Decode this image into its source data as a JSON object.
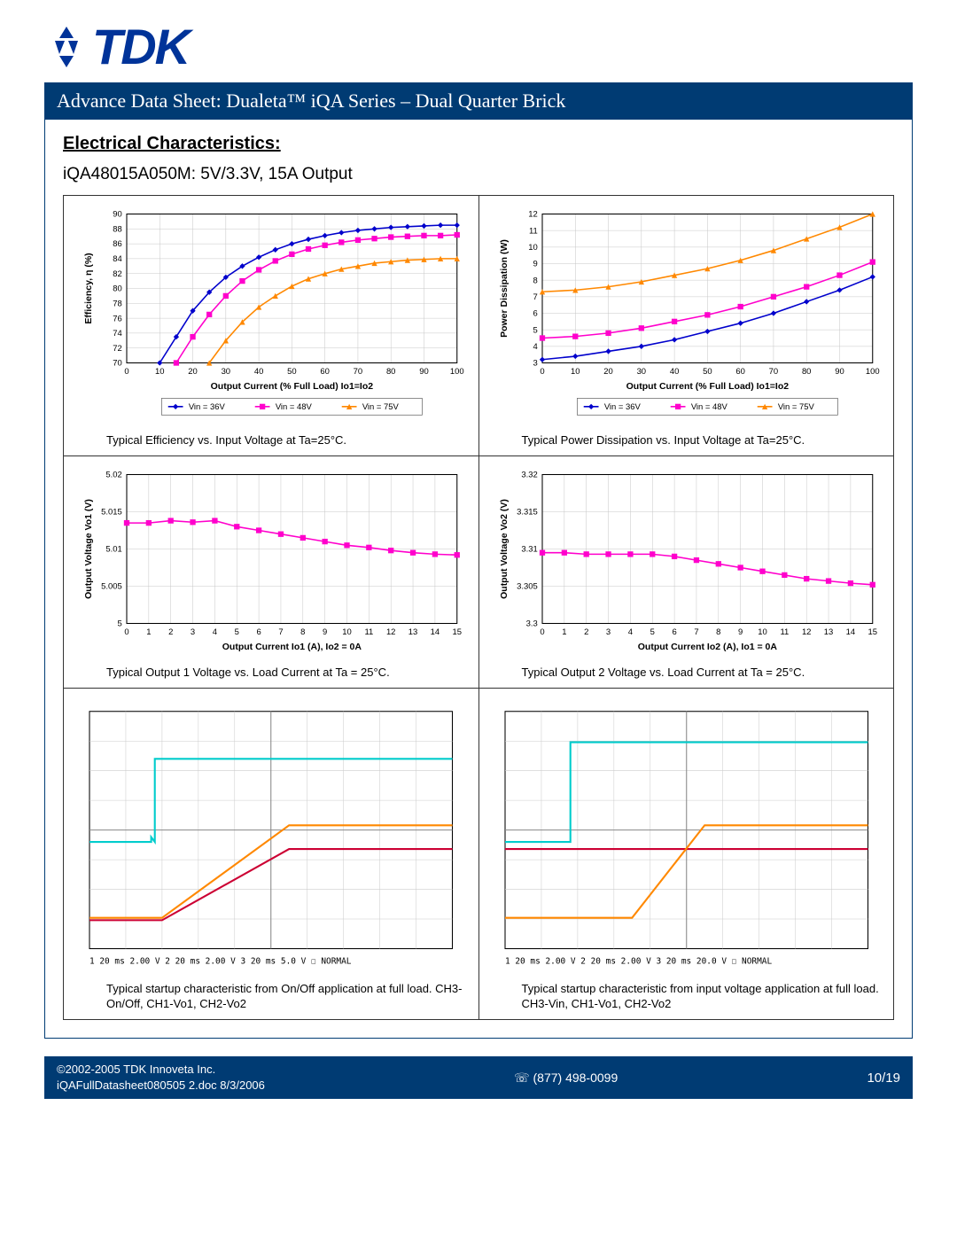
{
  "logo_text": "TDK",
  "header_bar": "Advance Data Sheet: Dualeta™ iQA Series – Dual Quarter Brick",
  "section_title": "Electrical Characteristics:",
  "subtitle": "iQA48015A050M: 5V/3.3V, 15A Output",
  "colors": {
    "brand_blue": "#003399",
    "header_bg": "#003b73",
    "series_blue": "#0000cc",
    "series_magenta": "#ff00cc",
    "series_orange": "#ff8800",
    "series_teal": "#00cccc",
    "series_red": "#cc0033",
    "grid": "#c8c8c8",
    "axis": "#000000"
  },
  "charts": {
    "efficiency": {
      "type": "line",
      "ylabel": "Efficiency, η (%)",
      "xlabel": "Output Current (% Full Load)  Io1=Io2",
      "xlim": [
        0,
        100
      ],
      "xtick_step": 10,
      "ylim": [
        70,
        90
      ],
      "ytick_step": 2,
      "legend": [
        "Vin = 36V",
        "Vin = 48V",
        "Vin = 75V"
      ],
      "legend_colors": [
        "#0000cc",
        "#ff00cc",
        "#ff8800"
      ],
      "legend_markers": [
        "diamond",
        "square",
        "triangle"
      ],
      "series": [
        {
          "color": "#0000cc",
          "marker": "diamond",
          "x": [
            10,
            15,
            20,
            25,
            30,
            35,
            40,
            45,
            50,
            55,
            60,
            65,
            70,
            75,
            80,
            85,
            90,
            95,
            100
          ],
          "y": [
            70,
            73.5,
            77,
            79.5,
            81.5,
            83,
            84.2,
            85.2,
            86,
            86.6,
            87.1,
            87.5,
            87.8,
            88,
            88.2,
            88.3,
            88.4,
            88.5,
            88.5
          ]
        },
        {
          "color": "#ff00cc",
          "marker": "square",
          "x": [
            15,
            20,
            25,
            30,
            35,
            40,
            45,
            50,
            55,
            60,
            65,
            70,
            75,
            80,
            85,
            90,
            95,
            100
          ],
          "y": [
            70,
            73.5,
            76.5,
            79,
            81,
            82.5,
            83.7,
            84.6,
            85.3,
            85.8,
            86.2,
            86.5,
            86.7,
            86.9,
            87,
            87.1,
            87.1,
            87.2
          ]
        },
        {
          "color": "#ff8800",
          "marker": "triangle",
          "x": [
            25,
            30,
            35,
            40,
            45,
            50,
            55,
            60,
            65,
            70,
            75,
            80,
            85,
            90,
            95,
            100
          ],
          "y": [
            70,
            73,
            75.5,
            77.5,
            79,
            80.3,
            81.3,
            82,
            82.6,
            83,
            83.4,
            83.6,
            83.8,
            83.9,
            84,
            84
          ]
        }
      ],
      "caption": "Typical Efficiency vs. Input Voltage at Ta=25°C."
    },
    "powerdiss": {
      "type": "line",
      "ylabel": "Power Dissipation (W)",
      "xlabel": "Output Current (% Full Load)  Io1=Io2",
      "xlim": [
        0,
        100
      ],
      "xtick_step": 10,
      "ylim": [
        3,
        12
      ],
      "ytick_step": 1,
      "legend": [
        "Vin = 36V",
        "Vin = 48V",
        "Vin = 75V"
      ],
      "legend_colors": [
        "#0000cc",
        "#ff00cc",
        "#ff8800"
      ],
      "legend_markers": [
        "diamond",
        "square",
        "triangle"
      ],
      "series": [
        {
          "color": "#0000cc",
          "marker": "diamond",
          "x": [
            0,
            10,
            20,
            30,
            40,
            50,
            60,
            70,
            80,
            90,
            100
          ],
          "y": [
            3.2,
            3.4,
            3.7,
            4.0,
            4.4,
            4.9,
            5.4,
            6.0,
            6.7,
            7.4,
            8.2
          ]
        },
        {
          "color": "#ff00cc",
          "marker": "square",
          "x": [
            0,
            10,
            20,
            30,
            40,
            50,
            60,
            70,
            80,
            90,
            100
          ],
          "y": [
            4.5,
            4.6,
            4.8,
            5.1,
            5.5,
            5.9,
            6.4,
            7.0,
            7.6,
            8.3,
            9.1
          ]
        },
        {
          "color": "#ff8800",
          "marker": "triangle",
          "x": [
            0,
            10,
            20,
            30,
            40,
            50,
            60,
            70,
            80,
            90,
            100
          ],
          "y": [
            7.3,
            7.4,
            7.6,
            7.9,
            8.3,
            8.7,
            9.2,
            9.8,
            10.5,
            11.2,
            12.0
          ]
        }
      ],
      "caption": "Typical Power Dissipation vs. Input Voltage at Ta=25°C."
    },
    "vout1": {
      "type": "line",
      "ylabel": "Output Voltage Vo1 (V)",
      "xlabel": "Output Current Io1 (A), Io2 = 0A",
      "xlim": [
        0,
        15
      ],
      "xtick_step": 1,
      "ylim": [
        5,
        5.02
      ],
      "ytick_step": 0.005,
      "yticks": [
        "5",
        "5.005",
        "5.01",
        "5.015",
        "5.02"
      ],
      "series": [
        {
          "color": "#ff00cc",
          "marker": "square",
          "x": [
            0,
            1,
            2,
            3,
            4,
            5,
            6,
            7,
            8,
            9,
            10,
            11,
            12,
            13,
            14,
            15
          ],
          "y": [
            5.0135,
            5.0135,
            5.0138,
            5.0136,
            5.0138,
            5.013,
            5.0125,
            5.012,
            5.0115,
            5.011,
            5.0105,
            5.0102,
            5.0098,
            5.0095,
            5.0093,
            5.0092
          ]
        }
      ],
      "caption": "Typical Output 1 Voltage vs. Load Current at Ta = 25°C."
    },
    "vout2": {
      "type": "line",
      "ylabel": "Output Voltage Vo2 (V)",
      "xlabel": "Output Current Io2 (A), Io1 = 0A",
      "xlim": [
        0,
        15
      ],
      "xtick_step": 1,
      "ylim": [
        3.3,
        3.32
      ],
      "ytick_step": 0.005,
      "yticks": [
        "3.3",
        "3.305",
        "3.31",
        "3.315",
        "3.32"
      ],
      "series": [
        {
          "color": "#ff00cc",
          "marker": "square",
          "x": [
            0,
            1,
            2,
            3,
            4,
            5,
            6,
            7,
            8,
            9,
            10,
            11,
            12,
            13,
            14,
            15
          ],
          "y": [
            3.3095,
            3.3095,
            3.3093,
            3.3093,
            3.3093,
            3.3093,
            3.309,
            3.3085,
            3.308,
            3.3075,
            3.307,
            3.3065,
            3.306,
            3.3057,
            3.3054,
            3.3052
          ]
        }
      ],
      "caption": "Typical Output 2 Voltage vs. Load Current at Ta = 25°C."
    },
    "startup1": {
      "type": "scope",
      "traces": [
        {
          "color": "#00cccc",
          "segments": [
            [
              0,
              0.55
            ],
            [
              0.17,
              0.55
            ],
            [
              0.17,
              0.53
            ],
            [
              0.18,
              0.55
            ],
            [
              0.18,
              0.2
            ],
            [
              1,
              0.2
            ]
          ]
        },
        {
          "color": "#cc0033",
          "segments": [
            [
              0,
              0.88
            ],
            [
              0.2,
              0.88
            ],
            [
              0.55,
              0.58
            ],
            [
              1,
              0.58
            ]
          ]
        },
        {
          "color": "#ff8800",
          "segments": [
            [
              0,
              0.87
            ],
            [
              0.2,
              0.87
            ],
            [
              0.55,
              0.48
            ],
            [
              1,
              0.48
            ]
          ]
        }
      ],
      "footer_text": "1 20 ms 2.00 V   2 20 ms 2.00 V   3 20 ms 5.0 V                    ☐    NORMAL",
      "caption": "Typical startup characteristic from On/Off application at full load. CH3-On/Off, CH1-Vo1, CH2-Vo2"
    },
    "startup2": {
      "type": "scope",
      "traces": [
        {
          "color": "#00cccc",
          "segments": [
            [
              0,
              0.55
            ],
            [
              0.18,
              0.55
            ],
            [
              0.18,
              0.13
            ],
            [
              1,
              0.13
            ]
          ]
        },
        {
          "color": "#cc0033",
          "segments": [
            [
              0,
              0.58
            ],
            [
              1,
              0.58
            ]
          ]
        },
        {
          "color": "#ff8800",
          "segments": [
            [
              0,
              0.87
            ],
            [
              0.35,
              0.87
            ],
            [
              0.55,
              0.48
            ],
            [
              1,
              0.48
            ]
          ]
        }
      ],
      "footer_text": "1 20 ms 2.00 V   2 20 ms 2.00 V   3 20 ms 20.0 V                   ☐    NORMAL",
      "caption": "Typical startup characteristic from input voltage application at full load.  CH3-Vin, CH1-Vo1, CH2-Vo2"
    }
  },
  "footer": {
    "copyright": "©2002-2005  TDK Innoveta Inc.",
    "docinfo": "iQAFullDatasheet080505  2.doc 8/3/2006",
    "phone": "☏ (877) 498-0099",
    "page": "10/19"
  }
}
